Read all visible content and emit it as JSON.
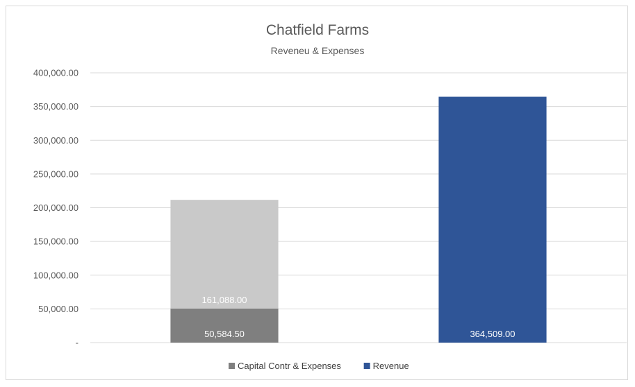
{
  "chart_data": {
    "type": "bar",
    "stacked": true,
    "title": "Chatfield Farms",
    "subtitle": "Reveneu & Expenses",
    "categories": [
      "",
      ""
    ],
    "ylim": [
      0,
      400000
    ],
    "yticks": [
      0,
      50000,
      100000,
      150000,
      200000,
      250000,
      300000,
      350000,
      400000
    ],
    "ytick_labels": [
      "-",
      "50,000.00",
      "100,000.00",
      "150,000.00",
      "200,000.00",
      "250,000.00",
      "300,000.00",
      "350,000.00",
      "400,000.00"
    ],
    "grid": true,
    "legend_position": "bottom",
    "series": [
      {
        "name": "Capital Contr & Expenses",
        "color": "#7f7f7f",
        "legend": true,
        "values": [
          50584.5,
          null
        ],
        "labels": [
          "50,584.50",
          ""
        ]
      },
      {
        "color": "#c9c9c9",
        "legend": false,
        "values": [
          161088,
          null
        ],
        "labels": [
          "161,088.00",
          ""
        ]
      },
      {
        "name": "Revenue",
        "color": "#2f5597",
        "legend": true,
        "values": [
          null,
          364509
        ],
        "labels": [
          "",
          "364,509.00"
        ]
      }
    ]
  }
}
